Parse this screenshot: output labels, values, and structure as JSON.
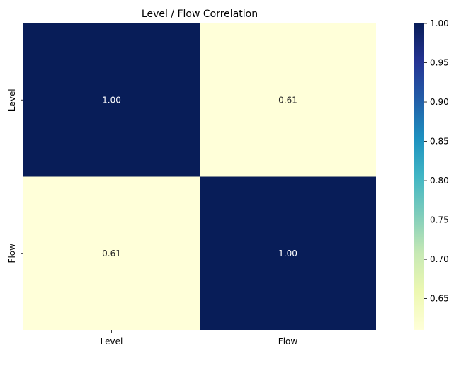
{
  "chart_data": {
    "type": "heatmap",
    "title": "Level / Flow Correlation",
    "x_categories": [
      "Level",
      "Flow"
    ],
    "y_categories": [
      "Level",
      "Flow"
    ],
    "values": [
      [
        1.0,
        0.61
      ],
      [
        0.61,
        1.0
      ]
    ],
    "value_format": "0.00",
    "colormap": "YlGnBu",
    "colorbar": {
      "range": [
        0.61,
        1.0
      ],
      "ticks": [
        0.65,
        0.7,
        0.75,
        0.8,
        0.85,
        0.9,
        0.95,
        1.0
      ],
      "tick_labels": [
        "0.65",
        "0.70",
        "0.75",
        "0.80",
        "0.85",
        "0.90",
        "0.95",
        "1.00"
      ]
    },
    "xlabel": "",
    "ylabel": "",
    "grid": false
  }
}
